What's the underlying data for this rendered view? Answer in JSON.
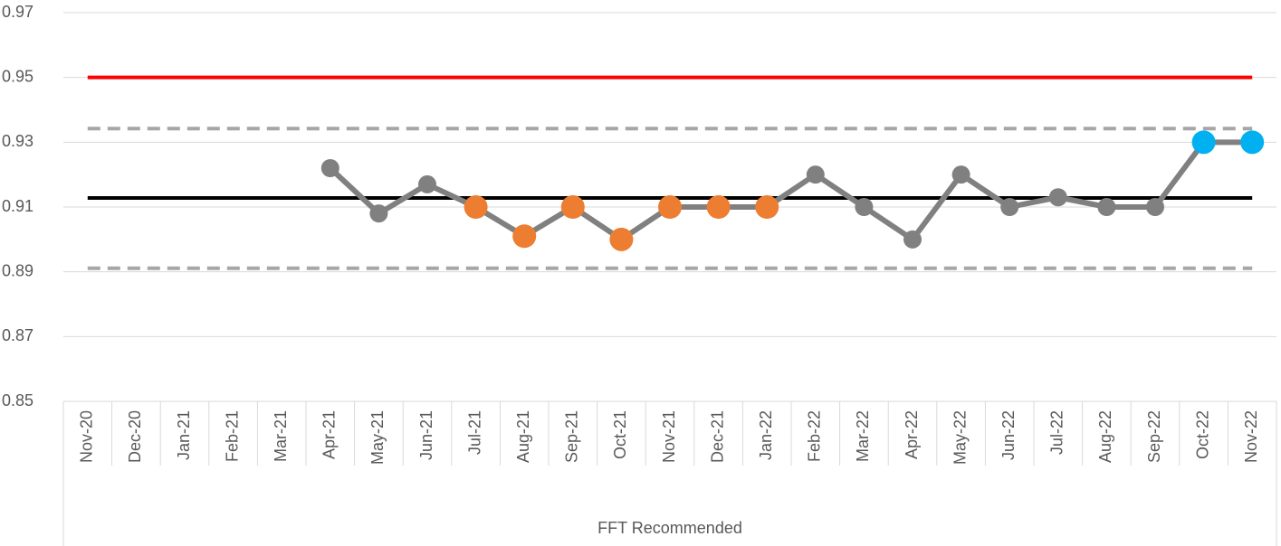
{
  "chart_data": {
    "type": "line",
    "x_label": "FFT Recommended",
    "categories": [
      "Nov-20",
      "Dec-20",
      "Jan-21",
      "Feb-21",
      "Mar-21",
      "Apr-21",
      "May-21",
      "Jun-21",
      "Jul-21",
      "Aug-21",
      "Sep-21",
      "Oct-21",
      "Nov-21",
      "Dec-21",
      "Jan-22",
      "Feb-22",
      "Mar-22",
      "Apr-22",
      "May-22",
      "Jun-22",
      "Jul-22",
      "Aug-22",
      "Sep-22",
      "Oct-22",
      "Nov-22"
    ],
    "series": [
      {
        "color": "#808080",
        "values": [
          null,
          null,
          null,
          null,
          null,
          0.922,
          0.908,
          0.917,
          0.91,
          0.901,
          0.91,
          0.9,
          0.91,
          0.91,
          0.91,
          0.92,
          0.91,
          0.9,
          0.92,
          0.91,
          0.913,
          0.91,
          0.91,
          0.93,
          0.93
        ],
        "marker_colors": [
          null,
          null,
          null,
          null,
          null,
          "#808080",
          "#808080",
          "#808080",
          "#ed7d31",
          "#ed7d31",
          "#ed7d31",
          "#ed7d31",
          "#ed7d31",
          "#ed7d31",
          "#ed7d31",
          "#808080",
          "#808080",
          "#808080",
          "#808080",
          "#808080",
          "#808080",
          "#808080",
          "#808080",
          "#00b0f0",
          "#00b0f0"
        ]
      }
    ],
    "reference_lines": [
      {
        "value": 0.95,
        "color": "#ff0000",
        "dashed": false
      },
      {
        "value": 0.9342,
        "color": "#a6a6a6",
        "dashed": true
      },
      {
        "value": 0.9128,
        "color": "#000000",
        "dashed": false
      },
      {
        "value": 0.8911,
        "color": "#a6a6a6",
        "dashed": true
      }
    ],
    "ylim": [
      0.85,
      0.97
    ],
    "yticks": [
      {
        "value": 0.85,
        "label": "0.85"
      },
      {
        "value": 0.87,
        "label": "0.87"
      },
      {
        "value": 0.89,
        "label": "0.89"
      },
      {
        "value": 0.91,
        "label": "0.91"
      },
      {
        "value": 0.93,
        "label": "0.93"
      },
      {
        "value": 0.95,
        "label": "0.95"
      },
      {
        "value": 0.97,
        "label": "0.97"
      }
    ],
    "grid": true
  }
}
